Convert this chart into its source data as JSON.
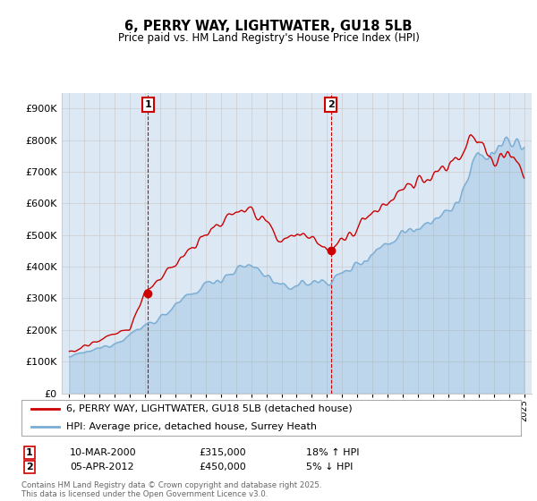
{
  "title": "6, PERRY WAY, LIGHTWATER, GU18 5LB",
  "subtitle": "Price paid vs. HM Land Registry's House Price Index (HPI)",
  "ylim": [
    0,
    950000
  ],
  "yticks": [
    0,
    100000,
    200000,
    300000,
    400000,
    500000,
    600000,
    700000,
    800000,
    900000
  ],
  "ytick_labels": [
    "£0",
    "£100K",
    "£200K",
    "£300K",
    "£400K",
    "£500K",
    "£600K",
    "£700K",
    "£800K",
    "£900K"
  ],
  "legend_line1": "6, PERRY WAY, LIGHTWATER, GU18 5LB (detached house)",
  "legend_line2": "HPI: Average price, detached house, Surrey Heath",
  "annotation1_label": "1",
  "annotation1_date": "10-MAR-2000",
  "annotation1_price": "£315,000",
  "annotation1_hpi": "18% ↑ HPI",
  "annotation2_label": "2",
  "annotation2_date": "05-APR-2012",
  "annotation2_price": "£450,000",
  "annotation2_hpi": "5% ↓ HPI",
  "footer": "Contains HM Land Registry data © Crown copyright and database right 2025.\nThis data is licensed under the Open Government Licence v3.0.",
  "line_color_red": "#cc0000",
  "line_color_blue": "#7aadd4",
  "fill_color_blue": "#dce9f5",
  "background_color": "#ffffff",
  "grid_color": "#cccccc",
  "marker1_x": 2000.19,
  "marker1_y": 315000,
  "marker2_x": 2012.26,
  "marker2_y": 450000,
  "xlim_left": 1994.5,
  "xlim_right": 2025.5,
  "hpi_base_years": [
    1995,
    1996,
    1997,
    1998,
    1999,
    2000,
    2001,
    2002,
    2003,
    2004,
    2005,
    2006,
    2007,
    2008,
    2009,
    2010,
    2011,
    2012,
    2013,
    2014,
    2015,
    2016,
    2017,
    2018,
    2019,
    2020,
    2021,
    2022,
    2023,
    2024,
    2025
  ],
  "hpi_base_values": [
    115000,
    128000,
    142000,
    160000,
    185000,
    215000,
    240000,
    275000,
    310000,
    345000,
    365000,
    390000,
    405000,
    375000,
    330000,
    345000,
    350000,
    355000,
    375000,
    410000,
    445000,
    475000,
    510000,
    530000,
    555000,
    565000,
    640000,
    750000,
    760000,
    800000,
    770000
  ],
  "red_base_values": [
    130000,
    148000,
    165000,
    185000,
    210000,
    315000,
    360000,
    410000,
    460000,
    510000,
    535000,
    570000,
    590000,
    540000,
    475000,
    495000,
    500000,
    450000,
    475000,
    525000,
    570000,
    605000,
    650000,
    675000,
    705000,
    720000,
    770000,
    820000,
    740000,
    755000,
    720000
  ]
}
